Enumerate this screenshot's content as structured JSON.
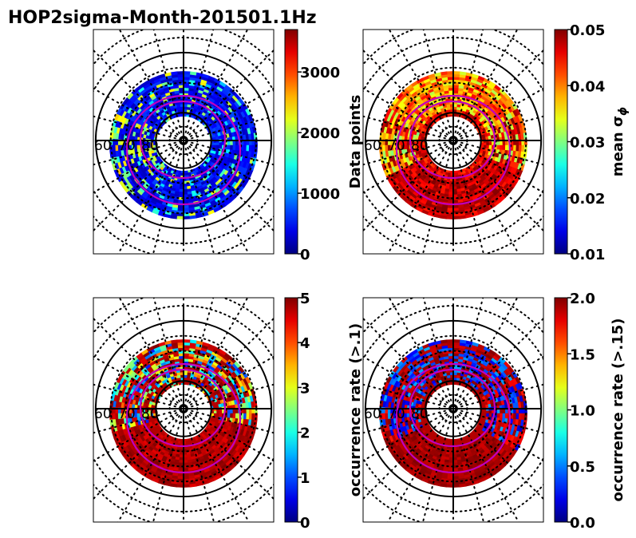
{
  "chart_data": {
    "title": "HOP2sigma-Month-201501.1Hz",
    "type": "heatmap",
    "projection": "polar",
    "panels": [
      {
        "id": "data-points",
        "colorbar_label": "Data points",
        "colormap": "jet",
        "vmin": 0,
        "vmax": 3700,
        "ticks": [
          0,
          1000,
          2000,
          3000
        ],
        "tick_labels": [
          "0",
          "1000",
          "2000",
          "3000"
        ],
        "pattern": "low",
        "lat_labels": [
          "60",
          "70",
          "80"
        ]
      },
      {
        "id": "mean-sigma-phi",
        "colorbar_label": "mean σ",
        "colorbar_label_sub": "ϕ",
        "colormap": "jet",
        "vmin": 0.01,
        "vmax": 0.05,
        "ticks": [
          0.01,
          0.02,
          0.03,
          0.04,
          0.05
        ],
        "tick_labels": [
          "0.01",
          "0.02",
          "0.03",
          "0.04",
          "0.05"
        ],
        "pattern": "high",
        "lat_labels": [
          "60",
          "70",
          "80"
        ]
      },
      {
        "id": "occurrence-rate-01",
        "colorbar_label": "occurrence rate (>.1)",
        "colormap": "jet",
        "vmin": 0,
        "vmax": 5,
        "ticks": [
          0,
          1,
          2,
          3,
          4,
          5
        ],
        "tick_labels": [
          "0",
          "1",
          "2",
          "3",
          "4",
          "5"
        ],
        "pattern": "mixed-high",
        "lat_labels": [
          "60",
          "70",
          "80"
        ]
      },
      {
        "id": "occurrence-rate-015",
        "colorbar_label": "occurrence rate (>.15)",
        "colormap": "jet",
        "vmin": 0,
        "vmax": 2,
        "ticks": [
          0,
          0.5,
          1,
          1.5,
          2
        ],
        "tick_labels": [
          "0.0",
          "0.5",
          "1.0",
          "1.5",
          "2.0"
        ],
        "pattern": "mixed-split",
        "lat_labels": [
          "60",
          "70",
          "80"
        ]
      }
    ],
    "grid": {
      "solid_circles_lat": [
        60,
        80
      ],
      "dotted_circles_lat": [
        50,
        55,
        65,
        70,
        75,
        85
      ],
      "dotted_meridian_count": 24,
      "solid_axes": true
    },
    "overlay_ovals": {
      "color": "#c000c0",
      "count": 2
    }
  },
  "colors": {
    "oval": "#c000c0",
    "axes": "#000000",
    "background": "#ffffff"
  }
}
